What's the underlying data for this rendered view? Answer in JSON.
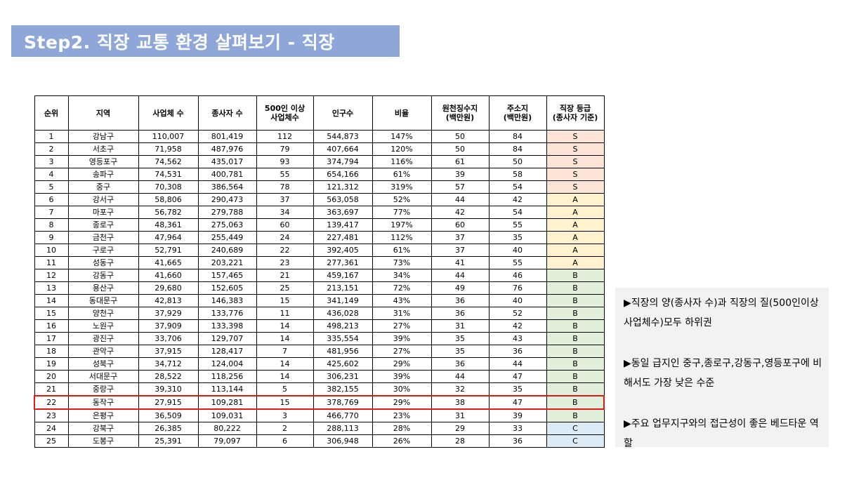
{
  "title": "Step2. 직장 교통 환경 살펴보기 - 직장",
  "table": {
    "headers": [
      "순위",
      "지역",
      "사업체 수",
      "종사자 수",
      "500인 이상\n사업체수",
      "인구수",
      "비율",
      "원천징수지\n(백만원)",
      "주소지\n(백만원)",
      "직장 등급\n(종사자 기준)"
    ],
    "highlight_rank": "22",
    "grade_colors": {
      "S": "#fce4d6",
      "A": "#fff2cc",
      "B": "#e2efda",
      "C": "#ddebf7"
    },
    "highlight_color": "#e01818",
    "rows": [
      [
        "1",
        "강남구",
        "110,007",
        "801,419",
        "112",
        "544,873",
        "147%",
        "50",
        "84",
        "S"
      ],
      [
        "2",
        "서초구",
        "71,958",
        "487,976",
        "79",
        "407,664",
        "120%",
        "50",
        "84",
        "S"
      ],
      [
        "3",
        "영등포구",
        "74,562",
        "435,017",
        "93",
        "374,794",
        "116%",
        "61",
        "50",
        "S"
      ],
      [
        "4",
        "송파구",
        "74,531",
        "400,781",
        "55",
        "654,166",
        "61%",
        "39",
        "58",
        "S"
      ],
      [
        "5",
        "중구",
        "70,308",
        "386,564",
        "78",
        "121,312",
        "319%",
        "57",
        "54",
        "S"
      ],
      [
        "6",
        "강서구",
        "58,806",
        "290,473",
        "37",
        "563,058",
        "52%",
        "44",
        "42",
        "A"
      ],
      [
        "7",
        "마포구",
        "56,782",
        "279,788",
        "34",
        "363,697",
        "77%",
        "42",
        "54",
        "A"
      ],
      [
        "8",
        "종로구",
        "48,361",
        "275,063",
        "60",
        "139,417",
        "197%",
        "60",
        "55",
        "A"
      ],
      [
        "9",
        "금천구",
        "47,964",
        "255,449",
        "24",
        "227,481",
        "112%",
        "37",
        "35",
        "A"
      ],
      [
        "10",
        "구로구",
        "52,791",
        "240,689",
        "22",
        "392,405",
        "61%",
        "37",
        "40",
        "A"
      ],
      [
        "11",
        "성동구",
        "41,665",
        "203,221",
        "23",
        "277,361",
        "73%",
        "41",
        "55",
        "A"
      ],
      [
        "12",
        "강동구",
        "41,660",
        "157,465",
        "21",
        "459,167",
        "34%",
        "44",
        "46",
        "B"
      ],
      [
        "13",
        "용산구",
        "29,680",
        "152,605",
        "25",
        "213,151",
        "72%",
        "49",
        "76",
        "B"
      ],
      [
        "14",
        "동대문구",
        "42,813",
        "146,383",
        "15",
        "341,149",
        "43%",
        "36",
        "40",
        "B"
      ],
      [
        "15",
        "양천구",
        "37,929",
        "133,776",
        "11",
        "436,028",
        "31%",
        "36",
        "52",
        "B"
      ],
      [
        "16",
        "노원구",
        "37,909",
        "133,398",
        "14",
        "498,213",
        "27%",
        "31",
        "42",
        "B"
      ],
      [
        "17",
        "광진구",
        "33,706",
        "129,707",
        "14",
        "335,554",
        "39%",
        "35",
        "43",
        "B"
      ],
      [
        "18",
        "관악구",
        "37,915",
        "128,417",
        "7",
        "481,956",
        "27%",
        "35",
        "36",
        "B"
      ],
      [
        "19",
        "성북구",
        "34,712",
        "124,004",
        "14",
        "425,602",
        "29%",
        "36",
        "44",
        "B"
      ],
      [
        "20",
        "서대문구",
        "28,522",
        "118,256",
        "14",
        "306,231",
        "39%",
        "44",
        "47",
        "B"
      ],
      [
        "21",
        "중랑구",
        "39,310",
        "113,144",
        "5",
        "382,155",
        "30%",
        "32",
        "35",
        "B"
      ],
      [
        "22",
        "동작구",
        "27,915",
        "109,281",
        "15",
        "378,769",
        "29%",
        "38",
        "47",
        "B"
      ],
      [
        "23",
        "은평구",
        "36,509",
        "109,031",
        "3",
        "466,770",
        "23%",
        "31",
        "39",
        "B"
      ],
      [
        "24",
        "강북구",
        "26,385",
        "80,222",
        "2",
        "288,113",
        "28%",
        "29",
        "33",
        "C"
      ],
      [
        "25",
        "도봉구",
        "25,391",
        "79,097",
        "6",
        "306,948",
        "26%",
        "28",
        "36",
        "C"
      ]
    ]
  },
  "notes": [
    "▶직장의 양(종사자 수)과 직장의 질(500인이상 사업체수)모두 하위권",
    "▶동일 급지인 중구,종로구,강동구,영등포구에 비해서도 가장 낮은 수준",
    "▶주요 업무지구와의 접근성이 좋은 베드타운 역할"
  ]
}
